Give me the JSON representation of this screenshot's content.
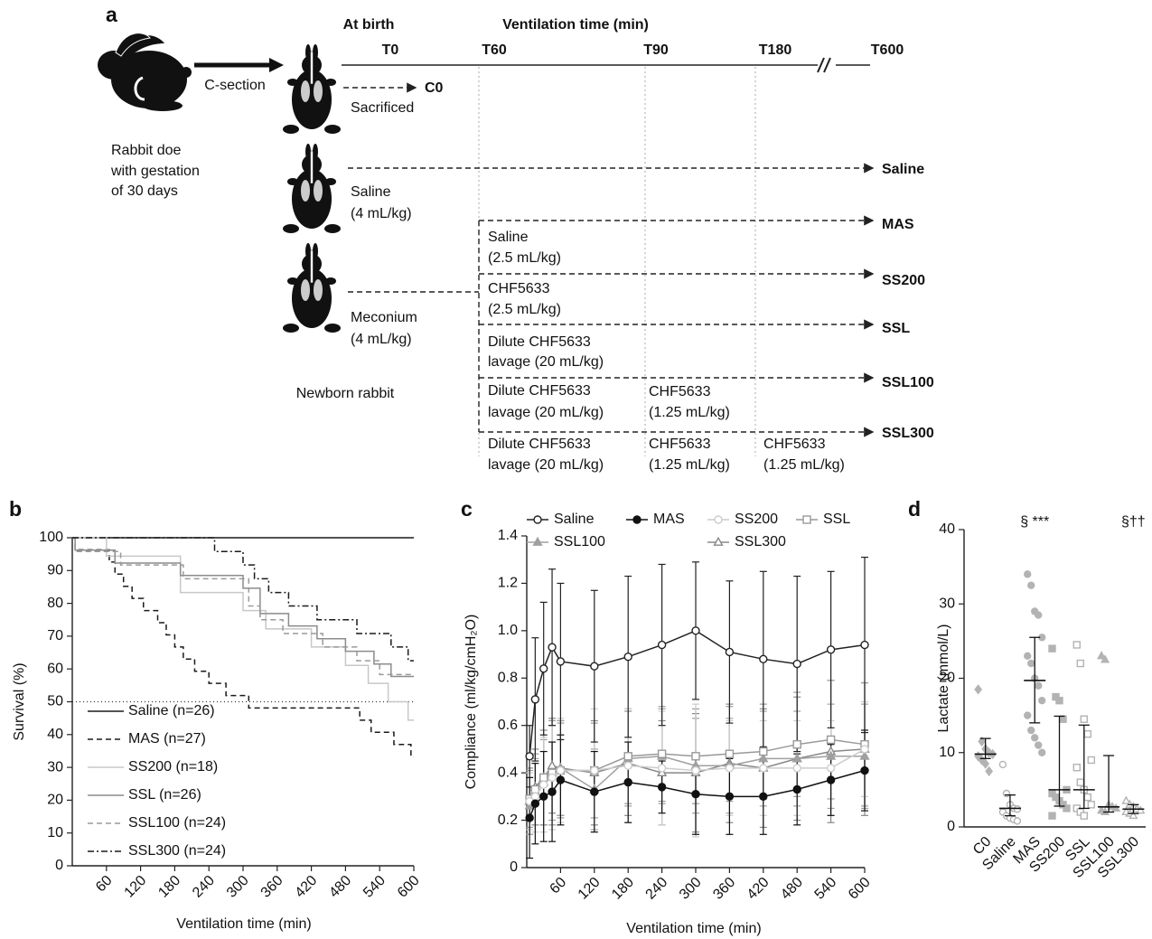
{
  "diagram": {
    "panel_label": "a",
    "at_birth": "At birth",
    "ventilation_title": "Ventilation time (min)",
    "timepoints": [
      "T0",
      "T60",
      "T90",
      "T180",
      "T600"
    ],
    "arrow_label": "C-section",
    "doe_caption": [
      "Rabbit doe",
      "with gestation",
      "of 30 days"
    ],
    "c0": {
      "label": "C0",
      "caption": "Sacrificed"
    },
    "newborn_saline": [
      "Saline",
      "(4 mL/kg)"
    ],
    "newborn_meconium": [
      "Meconium",
      "(4 mL/kg)"
    ],
    "newborn_caption": "Newborn rabbit",
    "groups": [
      "Saline",
      "MAS",
      "SS200",
      "SSL",
      "SSL100",
      "SSL300"
    ],
    "treatments": [
      [
        "Saline",
        "(2.5 mL/kg)"
      ],
      [
        "CHF5633",
        "(2.5 mL/kg)"
      ],
      [
        "Dilute CHF5633",
        "lavage (20 mL/kg)"
      ],
      [
        "Dilute CHF5633",
        "lavage (20 mL/kg)"
      ],
      [
        "CHF5633",
        "(1.25 mL/kg)"
      ],
      [
        "Dilute CHF5633",
        "lavage (20 mL/kg)"
      ],
      [
        "CHF5633",
        "(1.25 mL/kg)"
      ],
      [
        "CHF5633",
        "(1.25 mL/kg)"
      ]
    ]
  },
  "chart_data": [
    {
      "type": "step",
      "panel_label": "b",
      "x_label": "Ventilation time (min)",
      "y_label": "Survival (%)",
      "xlim": [
        0,
        600
      ],
      "xticks": [
        60,
        120,
        180,
        240,
        300,
        360,
        420,
        480,
        540,
        600
      ],
      "ylim": [
        0,
        100
      ],
      "yticks": [
        0,
        10,
        20,
        30,
        40,
        50,
        60,
        70,
        80,
        90,
        100
      ],
      "reference_line": 50,
      "legend": "bottom-left",
      "series": [
        {
          "name": "Saline (n=26)",
          "color": "#1a1a1a",
          "linestyle": "solid",
          "x": [
            0,
            600
          ],
          "values": [
            100,
            100
          ]
        },
        {
          "name": "MAS (n=27)",
          "color": "#1a1a1a",
          "linestyle": "dashed",
          "x": [
            0,
            5,
            65,
            75,
            90,
            105,
            125,
            150,
            165,
            180,
            195,
            215,
            240,
            270,
            310,
            505,
            525,
            565,
            595,
            600
          ],
          "values": [
            100,
            96.3,
            92.6,
            88.9,
            85.2,
            81.5,
            77.8,
            74.1,
            70.4,
            66.7,
            63,
            59.3,
            55.6,
            51.9,
            48.1,
            44.4,
            40.7,
            37,
            33.3,
            33.3
          ]
        },
        {
          "name": "SS200 (n=18)",
          "color": "#c8c8c8",
          "linestyle": "solid",
          "x": [
            0,
            60,
            190,
            300,
            340,
            420,
            480,
            520,
            555,
            590,
            600
          ],
          "values": [
            100,
            94.4,
            83.3,
            77.8,
            72.2,
            66.7,
            61.1,
            55.6,
            50,
            44.4,
            44.4
          ]
        },
        {
          "name": "SSL (n=26)",
          "color": "#8c8c8c",
          "linestyle": "solid",
          "x": [
            0,
            5,
            75,
            190,
            300,
            330,
            380,
            430,
            480,
            530,
            560,
            600
          ],
          "values": [
            100,
            96.2,
            92.3,
            88.5,
            84.6,
            76.9,
            73.1,
            69.2,
            65.4,
            61.5,
            57.7,
            57.7
          ]
        },
        {
          "name": "SSL100 (n=24)",
          "color": "#9a9a9a",
          "linestyle": "dashed",
          "x": [
            0,
            5,
            85,
            195,
            310,
            330,
            370,
            440,
            500,
            540,
            600
          ],
          "values": [
            100,
            95.8,
            91.7,
            87.5,
            79.2,
            75,
            70.8,
            66.7,
            62.5,
            58.3,
            58.3
          ]
        },
        {
          "name": "SSL300 (n=24)",
          "color": "#1a1a1a",
          "linestyle": "dashdot",
          "x": [
            0,
            250,
            300,
            320,
            345,
            380,
            430,
            500,
            560,
            590,
            600
          ],
          "values": [
            100,
            95.8,
            91.7,
            87.5,
            83.3,
            79.2,
            75,
            70.8,
            66.7,
            62.5,
            62.5
          ]
        }
      ]
    },
    {
      "type": "line",
      "panel_label": "c",
      "x_label": "Ventilation time (min)",
      "y_label": "Compliance (ml/kg/cmH₂O)",
      "xlim": [
        0,
        600
      ],
      "xticks": [
        60,
        120,
        180,
        240,
        300,
        360,
        420,
        480,
        540,
        600
      ],
      "ylim": [
        0,
        1.4
      ],
      "yticks": [
        0,
        0.2,
        0.4,
        0.6,
        0.8,
        {
          "value": 1,
          "label": "1.0"
        },
        1.2,
        1.4
      ],
      "legend": "top",
      "x": [
        5,
        15,
        30,
        45,
        60,
        120,
        180,
        240,
        300,
        360,
        420,
        480,
        540,
        600
      ],
      "series": [
        {
          "name": "Saline",
          "color": "#222222",
          "marker": "circle",
          "filled": false,
          "values": [
            0.47,
            0.71,
            0.84,
            0.93,
            0.87,
            0.85,
            0.89,
            0.94,
            1.0,
            0.91,
            0.88,
            0.86,
            0.92,
            0.94
          ],
          "errors": [
            0.13,
            0.26,
            0.28,
            0.33,
            0.33,
            0.32,
            0.34,
            0.34,
            0.29,
            0.3,
            0.37,
            0.37,
            0.33,
            0.37
          ]
        },
        {
          "name": "MAS",
          "color": "#111111",
          "marker": "circle",
          "filled": true,
          "values": [
            0.21,
            0.27,
            0.3,
            0.32,
            0.37,
            0.32,
            0.36,
            0.34,
            0.31,
            0.3,
            0.3,
            0.33,
            0.37,
            0.41
          ],
          "errors": [
            0.17,
            0.17,
            0.19,
            0.21,
            0.19,
            0.17,
            0.17,
            0.11,
            0.17,
            0.16,
            0.16,
            0.15,
            0.15,
            0.17
          ]
        },
        {
          "name": "SS200",
          "color": "#cccccc",
          "marker": "circle",
          "filled": false,
          "values": [
            0.28,
            0.3,
            0.35,
            0.38,
            0.41,
            0.41,
            0.43,
            0.42,
            0.41,
            0.42,
            0.42,
            0.42,
            0.42,
            0.5
          ],
          "errors": [
            0.12,
            0.15,
            0.2,
            0.22,
            0.22,
            0.26,
            0.24,
            0.24,
            0.28,
            0.2,
            0.2,
            0.2,
            0.2,
            0.2
          ]
        },
        {
          "name": "SSL",
          "color": "#999999",
          "marker": "square",
          "filled": false,
          "values": [
            0.29,
            0.33,
            0.38,
            0.4,
            0.41,
            0.41,
            0.47,
            0.48,
            0.47,
            0.48,
            0.49,
            0.52,
            0.54,
            0.52
          ],
          "errors": [
            0.12,
            0.15,
            0.2,
            0.22,
            0.2,
            0.2,
            0.2,
            0.2,
            0.2,
            0.2,
            0.2,
            0.22,
            0.25,
            0.26
          ]
        },
        {
          "name": "SSL100",
          "color": "#a0a0a0",
          "marker": "triangle",
          "filled": true,
          "values": [
            0.26,
            0.32,
            0.36,
            0.4,
            0.42,
            0.33,
            0.46,
            0.47,
            0.43,
            0.43,
            0.46,
            0.46,
            0.47,
            0.47
          ],
          "errors": [
            0.12,
            0.14,
            0.18,
            0.2,
            0.2,
            0.17,
            0.2,
            0.2,
            0.2,
            0.2,
            0.2,
            0.2,
            0.22,
            0.22
          ]
        },
        {
          "name": "SSL300",
          "color": "#888888",
          "marker": "triangle",
          "filled": false,
          "values": [
            0.28,
            0.34,
            0.38,
            0.43,
            0.42,
            0.4,
            0.44,
            0.4,
            0.4,
            0.44,
            0.42,
            0.46,
            0.49,
            0.5
          ],
          "errors": [
            0.14,
            0.16,
            0.2,
            0.2,
            0.2,
            0.22,
            0.22,
            0.22,
            0.25,
            0.25,
            0.25,
            0.26,
            0.3,
            0.28
          ]
        }
      ]
    },
    {
      "type": "dot",
      "panel_label": "d",
      "y_label": "Lactate (mmol/L)",
      "ylim": [
        0,
        40
      ],
      "yticks": [
        0,
        10,
        20,
        30,
        40
      ],
      "color": "#b3b3b3",
      "categories": [
        "C0",
        "Saline",
        "MAS",
        "SS200",
        "SSL",
        "SSL100",
        "SSL300"
      ],
      "markers": [
        "diamond",
        "circle",
        "circle",
        "square",
        "square",
        "triangle",
        "triangle"
      ],
      "filled": [
        true,
        false,
        true,
        true,
        false,
        true,
        false
      ],
      "points": [
        [
          18.5,
          11.5,
          10.5,
          10,
          9.8,
          9.5,
          9,
          8.5,
          7.5
        ],
        [
          8.4,
          4.5,
          3,
          2.5,
          2.4,
          2,
          1.5,
          1.2,
          1,
          0.8
        ],
        [
          34,
          32.5,
          29,
          28.5,
          25.5,
          23,
          22,
          20,
          19,
          17,
          15,
          13,
          12,
          11,
          10
        ],
        [
          24,
          17.5,
          17,
          14.5,
          5,
          4.5,
          4,
          3.5,
          3,
          2.5,
          1.5
        ],
        [
          24.5,
          22,
          14.5,
          12.5,
          9,
          8,
          6,
          5,
          4,
          3,
          2.5,
          2,
          1.5
        ],
        [
          23,
          22.5,
          3,
          2.7,
          2.5,
          2.2,
          2
        ],
        [
          3.5,
          3,
          2.7,
          2.4,
          2.2,
          2,
          1.8,
          1.5
        ]
      ],
      "median": [
        9.8,
        2.5,
        19.7,
        5,
        5,
        2.7,
        2.4
      ],
      "q1": [
        9.2,
        1.5,
        14,
        2.8,
        2.5,
        2,
        1.8
      ],
      "q3": [
        11.9,
        4.3,
        25.5,
        14.9,
        13.7,
        9.6,
        3
      ],
      "annotations": [
        {
          "text": "§ ***",
          "category": "MAS"
        },
        {
          "text": "§††",
          "category": "SSL300"
        }
      ]
    }
  ]
}
